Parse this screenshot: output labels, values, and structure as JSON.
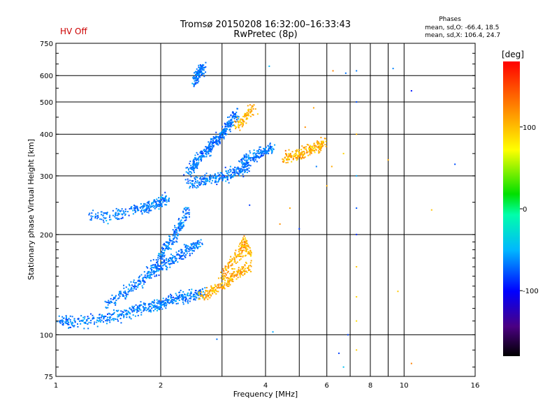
{
  "header": {
    "status": "HV Off",
    "title_line1": "Tromsø 20150208 16:32:00–16:33:43",
    "title_line2": "RwPretec (8p)",
    "stats_title": "Phases",
    "stats_line1": "mean, sd,O: -66.4, 18.5",
    "stats_line2": "mean, sd,X: 106.4, 24.7"
  },
  "colors": {
    "status": "#cc0000",
    "grid": "#000000"
  },
  "chart_data": {
    "type": "scatter",
    "xlabel": "Frequency [MHz]",
    "ylabel": "Stationary phase Virtual Height [km]",
    "x_scale": "log2",
    "y_scale": "log",
    "xlim": [
      1,
      16
    ],
    "ylim": [
      75,
      750
    ],
    "x_ticks": [
      1,
      2,
      4,
      6,
      8,
      10,
      16
    ],
    "x_minor_ticks": [
      3,
      5,
      7,
      9
    ],
    "y_ticks": [
      75,
      100,
      200,
      300,
      400,
      500,
      600,
      750
    ],
    "colorbar": {
      "label": "[deg]",
      "range": [
        -180,
        180
      ],
      "ticks": [
        100,
        0,
        -100
      ],
      "colormap": "rainbow"
    },
    "o_mode": {
      "name": "O",
      "phase_mean": -66.4,
      "phase_sd": 18.5,
      "traces": [
        {
          "x": [
            1.02,
            1.1,
            1.25,
            1.4,
            1.55,
            1.7,
            1.82,
            1.95,
            2.05,
            2.2,
            2.35,
            2.5,
            2.65
          ],
          "y": [
            110,
            109,
            110,
            112,
            115,
            118,
            120,
            122,
            125,
            128,
            130,
            133,
            135
          ]
        },
        {
          "x": [
            1.4,
            1.55,
            1.7,
            1.85,
            2.0,
            2.15,
            2.3,
            2.45,
            2.6
          ],
          "y": [
            122,
            132,
            142,
            152,
            160,
            168,
            175,
            182,
            188
          ]
        },
        {
          "x": [
            1.85,
            2.0,
            2.1,
            2.2,
            2.3,
            2.4
          ],
          "y": [
            150,
            170,
            185,
            200,
            215,
            240
          ]
        },
        {
          "x": [
            1.65,
            1.8,
            1.9,
            2.0,
            2.1
          ],
          "y": [
            238,
            240,
            245,
            250,
            258
          ]
        },
        {
          "x": [
            2.4,
            2.6,
            2.8,
            3.0,
            3.2,
            3.4,
            3.6
          ],
          "y": [
            285,
            290,
            295,
            300,
            305,
            310,
            318
          ]
        },
        {
          "x": [
            2.4,
            2.5,
            2.6,
            2.7,
            2.8,
            2.9
          ],
          "y": [
            310,
            325,
            340,
            355,
            372,
            390
          ]
        },
        {
          "x": [
            2.9,
            3.0,
            3.1,
            3.2,
            3.3
          ],
          "y": [
            380,
            400,
            420,
            440,
            460
          ]
        },
        {
          "x": [
            3.4,
            3.6,
            3.8,
            4.0,
            4.2
          ],
          "y": [
            330,
            340,
            348,
            355,
            362
          ]
        },
        {
          "x": [
            2.5,
            2.55,
            2.6,
            2.65
          ],
          "y": [
            570,
            600,
            620,
            640
          ]
        },
        {
          "x": [
            1.25,
            1.45,
            1.6
          ],
          "y": [
            225,
            228,
            232
          ]
        }
      ]
    },
    "x_mode": {
      "name": "X",
      "phase_mean": 106.4,
      "phase_sd": 24.7,
      "traces": [
        {
          "x": [
            2.6,
            2.8,
            3.0,
            3.2,
            3.4,
            3.6
          ],
          "y": [
            130,
            135,
            140,
            148,
            155,
            160
          ]
        },
        {
          "x": [
            3.0,
            3.2,
            3.4,
            3.5,
            3.6
          ],
          "y": [
            150,
            165,
            180,
            190,
            170
          ]
        },
        {
          "x": [
            4.5,
            4.8,
            5.1,
            5.4,
            5.7,
            5.9
          ],
          "y": [
            340,
            345,
            352,
            360,
            368,
            378
          ]
        },
        {
          "x": [
            3.3,
            3.5,
            3.7
          ],
          "y": [
            420,
            450,
            480
          ]
        }
      ]
    },
    "scattered_points": [
      {
        "x": 6.25,
        "y": 620
      },
      {
        "x": 6.8,
        "y": 610
      },
      {
        "x": 7.3,
        "y": 620
      },
      {
        "x": 7.3,
        "y": 500
      },
      {
        "x": 7.3,
        "y": 400
      },
      {
        "x": 7.3,
        "y": 300
      },
      {
        "x": 7.3,
        "y": 240
      },
      {
        "x": 7.3,
        "y": 200
      },
      {
        "x": 7.3,
        "y": 160
      },
      {
        "x": 7.3,
        "y": 130
      },
      {
        "x": 7.3,
        "y": 110
      },
      {
        "x": 7.3,
        "y": 90
      },
      {
        "x": 6.9,
        "y": 100
      },
      {
        "x": 10.5,
        "y": 540
      },
      {
        "x": 9.3,
        "y": 630
      },
      {
        "x": 12.0,
        "y": 237
      },
      {
        "x": 14.0,
        "y": 325
      },
      {
        "x": 9.0,
        "y": 335
      },
      {
        "x": 10.5,
        "y": 82
      },
      {
        "x": 9.6,
        "y": 135
      },
      {
        "x": 2.9,
        "y": 97
      },
      {
        "x": 4.2,
        "y": 102
      },
      {
        "x": 6.5,
        "y": 88
      },
      {
        "x": 6.7,
        "y": 80
      },
      {
        "x": 3.6,
        "y": 245
      },
      {
        "x": 4.4,
        "y": 215
      },
      {
        "x": 5.0,
        "y": 208
      },
      {
        "x": 5.2,
        "y": 420
      },
      {
        "x": 6.2,
        "y": 320
      },
      {
        "x": 6.0,
        "y": 280
      },
      {
        "x": 6.7,
        "y": 350
      },
      {
        "x": 5.5,
        "y": 480
      },
      {
        "x": 4.1,
        "y": 640
      },
      {
        "x": 3.8,
        "y": 460
      },
      {
        "x": 4.7,
        "y": 240
      },
      {
        "x": 5.6,
        "y": 320
      }
    ]
  }
}
